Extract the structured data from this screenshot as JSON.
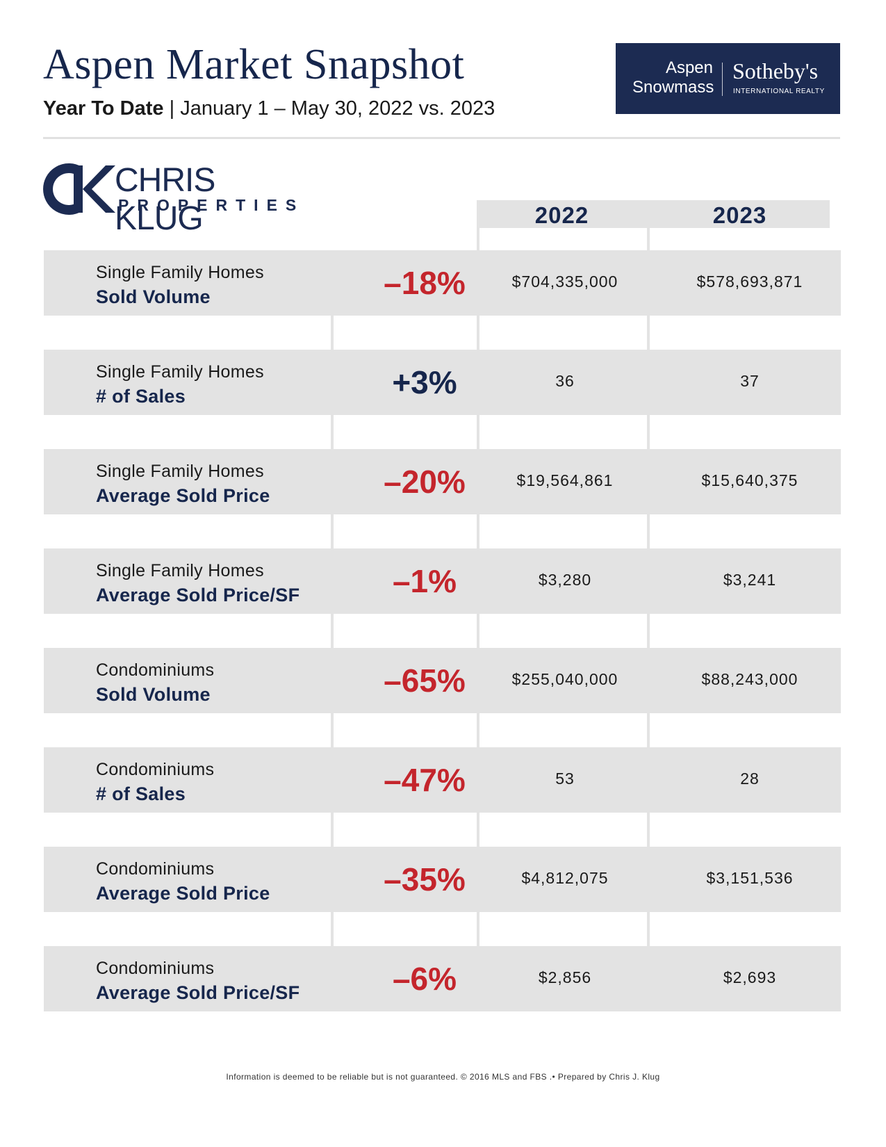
{
  "header": {
    "title": "Aspen Market Snapshot",
    "subtitle_bold": "Year To Date",
    "subtitle_sep": " | ",
    "subtitle_rest": "January 1 – May 30, 2022 vs. 2023"
  },
  "brand": {
    "left_line1": "Aspen",
    "left_line2": "Snowmass",
    "right_name": "Sotheby's",
    "right_tag": "INTERNATIONAL REALTY",
    "bg_color": "#1c2b52"
  },
  "logo": {
    "name": "CHRIS KLUG",
    "sub": "PROPERTIES"
  },
  "columns": {
    "year1": "2022",
    "year2": "2023"
  },
  "rows": [
    {
      "category": "Single Family Homes",
      "metric": "Sold Volume",
      "change": "–18%",
      "direction": "negative",
      "v2022": "$704,335,000",
      "v2023": "$578,693,871"
    },
    {
      "category": "Single Family Homes",
      "metric": "# of Sales",
      "change": "+3%",
      "direction": "positive",
      "v2022": "36",
      "v2023": "37"
    },
    {
      "category": "Single Family Homes",
      "metric": "Average Sold Price",
      "change": "–20%",
      "direction": "negative",
      "v2022": "$19,564,861",
      "v2023": "$15,640,375"
    },
    {
      "category": "Single Family Homes",
      "metric": "Average Sold Price/SF",
      "change": "–1%",
      "direction": "negative",
      "v2022": "$3,280",
      "v2023": "$3,241"
    },
    {
      "category": "Condominiums",
      "metric": "Sold Volume",
      "change": "–65%",
      "direction": "negative",
      "v2022": "$255,040,000",
      "v2023": "$88,243,000"
    },
    {
      "category": "Condominiums",
      "metric": "# of Sales",
      "change": "–47%",
      "direction": "negative",
      "v2022": "53",
      "v2023": "28"
    },
    {
      "category": "Condominiums",
      "metric": "Average Sold Price",
      "change": "–35%",
      "direction": "negative",
      "v2022": "$4,812,075",
      "v2023": "$3,151,536"
    },
    {
      "category": "Condominiums",
      "metric": "Average Sold Price/SF",
      "change": "–6%",
      "direction": "negative",
      "v2022": "$2,856",
      "v2023": "$2,693"
    }
  ],
  "colors": {
    "navy": "#16264c",
    "negative_red": "#c4252c",
    "row_gray": "#e3e3e3"
  },
  "footer": "Information is deemed to be reliable but is not guaranteed. © 2016 MLS and FBS .• Prepared by Chris J. Klug"
}
